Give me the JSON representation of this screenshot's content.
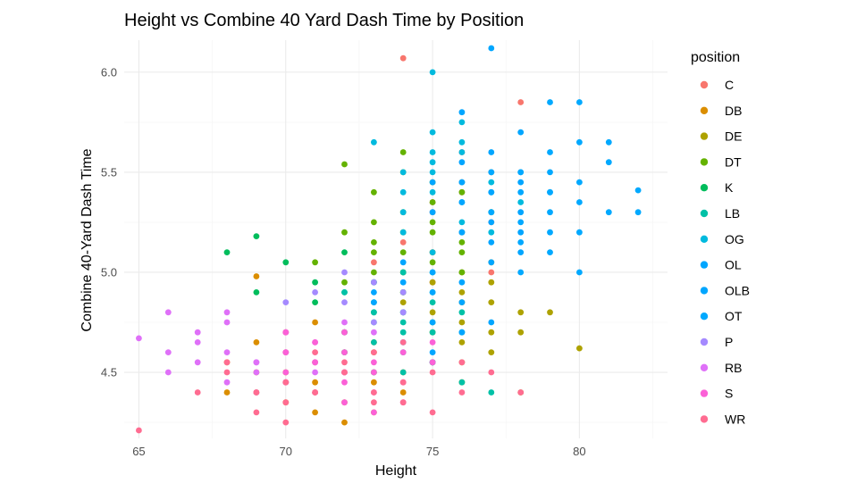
{
  "chart_data": {
    "type": "scatter",
    "title": "Height vs Combine 40 Yard Dash Time by Position",
    "xlabel": "Height",
    "ylabel": "Combine 40-Yard Dash Time",
    "xlim": [
      64.5,
      83
    ],
    "ylim": [
      4.17,
      6.16
    ],
    "x_ticks": [
      65,
      70,
      75,
      80
    ],
    "y_ticks": [
      4.5,
      5.0,
      5.5,
      6.0
    ],
    "y_tick_labels": [
      "4.5",
      "5.0",
      "5.5",
      "6.0"
    ],
    "grid": true,
    "legend": {
      "title": "position",
      "placement": "right"
    },
    "series": [
      {
        "name": "C",
        "color": "#F8766D",
        "x": [
          74,
          75,
          76,
          77,
          75,
          76,
          77,
          74,
          76,
          75,
          78,
          77,
          73,
          75,
          76
        ],
        "y": [
          6.07,
          5.3,
          5.2,
          5.5,
          5.1,
          5.4,
          5.0,
          5.15,
          5.6,
          5.35,
          5.85,
          5.25,
          5.05,
          4.95,
          5.45
        ]
      },
      {
        "name": "DB",
        "color": "#DB8E00",
        "x": [
          68,
          69,
          70,
          70,
          71,
          71,
          72,
          72,
          73,
          73,
          74,
          70,
          69,
          72,
          71,
          73,
          74,
          68,
          70,
          72,
          71,
          69,
          73,
          75,
          74,
          70,
          72,
          71,
          69,
          73
        ],
        "y": [
          4.4,
          4.5,
          4.45,
          4.6,
          4.4,
          4.55,
          4.5,
          4.35,
          4.45,
          4.6,
          4.5,
          4.7,
          4.65,
          4.7,
          4.3,
          4.3,
          4.4,
          4.55,
          4.35,
          4.25,
          4.75,
          4.98,
          4.65,
          4.55,
          4.8,
          4.5,
          4.6,
          4.45,
          4.4,
          4.5
        ]
      },
      {
        "name": "DE",
        "color": "#AEA200",
        "x": [
          74,
          75,
          76,
          77,
          75,
          76,
          77,
          78,
          74,
          76,
          75,
          77,
          78,
          76,
          75,
          74,
          77,
          76,
          79,
          80,
          78,
          76,
          75,
          77,
          76
        ],
        "y": [
          5.0,
          4.8,
          4.9,
          4.85,
          4.7,
          4.75,
          4.6,
          4.7,
          4.9,
          5.0,
          5.1,
          4.95,
          4.8,
          4.65,
          4.55,
          4.85,
          4.7,
          4.55,
          4.8,
          4.62,
          4.4,
          4.45,
          4.95,
          5.05,
          4.85
        ]
      },
      {
        "name": "DT",
        "color": "#64B200",
        "x": [
          72,
          73,
          74,
          75,
          76,
          74,
          73,
          75,
          76,
          72,
          74,
          75,
          73,
          77,
          74,
          76,
          73,
          75,
          72,
          74,
          71,
          75,
          74,
          76,
          73
        ],
        "y": [
          5.2,
          5.1,
          5.3,
          5.2,
          5.4,
          5.5,
          5.4,
          5.05,
          5.15,
          5.54,
          5.1,
          5.25,
          5.0,
          5.3,
          5.6,
          5.0,
          5.25,
          5.45,
          4.95,
          4.9,
          5.05,
          5.35,
          5.2,
          5.1,
          5.15
        ]
      },
      {
        "name": "K",
        "color": "#00BD5C",
        "x": [
          68,
          69,
          72,
          73,
          74,
          70,
          71,
          72,
          75,
          69,
          73,
          71
        ],
        "y": [
          5.1,
          5.18,
          4.9,
          4.95,
          5.0,
          5.05,
          4.85,
          5.1,
          4.75,
          4.9,
          4.8,
          4.95
        ]
      },
      {
        "name": "LB",
        "color": "#00C1A7",
        "x": [
          72,
          73,
          74,
          75,
          73,
          74,
          75,
          76,
          72,
          74,
          73,
          75,
          76,
          74,
          73,
          72,
          74,
          75,
          73,
          76,
          77,
          74,
          73,
          75,
          74
        ],
        "y": [
          4.7,
          4.8,
          4.75,
          4.85,
          4.65,
          4.9,
          4.7,
          4.8,
          4.9,
          4.6,
          4.95,
          4.55,
          4.7,
          4.5,
          4.5,
          4.6,
          5.0,
          5.0,
          4.85,
          4.45,
          4.4,
          4.7,
          4.75,
          4.9,
          4.8
        ]
      },
      {
        "name": "OG",
        "color": "#00BADE",
        "x": [
          74,
          75,
          76,
          77,
          75,
          76,
          77,
          74,
          75,
          76,
          75,
          76,
          77,
          78,
          74,
          75,
          76,
          73,
          75,
          77,
          76,
          74,
          75,
          76,
          77
        ],
        "y": [
          5.3,
          5.4,
          5.2,
          5.3,
          5.5,
          5.45,
          5.5,
          5.2,
          5.6,
          5.25,
          5.7,
          5.65,
          5.4,
          5.35,
          5.5,
          6.0,
          5.75,
          5.65,
          5.1,
          5.2,
          5.6,
          5.4,
          5.55,
          5.35,
          5.45
        ]
      },
      {
        "name": "OL",
        "color": "#00A6FF",
        "x": [
          75,
          76,
          77,
          78,
          76,
          77,
          78,
          79,
          77,
          78,
          77,
          76,
          78,
          77,
          76,
          78,
          77,
          76,
          75,
          78
        ],
        "y": [
          5.3,
          5.2,
          5.4,
          5.3,
          5.45,
          5.25,
          5.5,
          5.4,
          5.6,
          5.45,
          6.12,
          5.8,
          5.7,
          5.15,
          5.35,
          5.1,
          5.05,
          5.55,
          5.45,
          5.2
        ]
      },
      {
        "name": "OLB",
        "color": "#00A6FF",
        "x": [
          74,
          75,
          76,
          75,
          74,
          76,
          73,
          75,
          74,
          76,
          75,
          74,
          77,
          73,
          75
        ],
        "y": [
          4.8,
          4.9,
          4.85,
          4.75,
          4.95,
          4.7,
          4.85,
          5.0,
          4.65,
          4.95,
          4.6,
          5.05,
          4.75,
          4.9,
          4.55
        ]
      },
      {
        "name": "OT",
        "color": "#00A9FF",
        "x": [
          77,
          78,
          79,
          80,
          78,
          79,
          80,
          81,
          79,
          78,
          80,
          79,
          80,
          81,
          82,
          79,
          80,
          78,
          81,
          82,
          77,
          78,
          79,
          80,
          79
        ],
        "y": [
          5.3,
          5.4,
          5.3,
          5.2,
          5.5,
          5.6,
          5.45,
          5.3,
          5.1,
          5.0,
          5.65,
          5.85,
          5.85,
          5.55,
          5.41,
          5.2,
          5.0,
          5.15,
          5.65,
          5.3,
          5.5,
          5.25,
          5.4,
          5.35,
          5.5
        ]
      },
      {
        "name": "P",
        "color": "#A58AFF",
        "x": [
          71,
          72,
          73,
          74,
          72,
          73,
          70,
          74
        ],
        "y": [
          4.9,
          4.85,
          4.95,
          4.8,
          5.0,
          4.75,
          4.85,
          4.9
        ]
      },
      {
        "name": "RB",
        "color": "#DF70F8",
        "x": [
          65,
          66,
          67,
          68,
          68,
          69,
          69,
          70,
          70,
          71,
          71,
          72,
          67,
          66,
          68,
          69,
          70,
          71,
          72,
          73,
          68,
          67,
          66,
          69,
          70
        ],
        "y": [
          4.67,
          4.5,
          4.55,
          4.6,
          4.45,
          4.5,
          4.55,
          4.45,
          4.6,
          4.5,
          4.55,
          4.5,
          4.7,
          4.6,
          4.75,
          4.4,
          4.7,
          4.65,
          4.75,
          4.7,
          4.8,
          4.65,
          4.8,
          4.55,
          4.45
        ]
      },
      {
        "name": "S",
        "color": "#FB61D7",
        "x": [
          70,
          71,
          72,
          73,
          74,
          71,
          72,
          73,
          70,
          74,
          75,
          72,
          73,
          71,
          72,
          74,
          70,
          73,
          75,
          72
        ],
        "y": [
          4.5,
          4.55,
          4.45,
          4.5,
          4.6,
          4.65,
          4.35,
          4.4,
          4.6,
          4.45,
          4.55,
          4.7,
          4.3,
          4.4,
          4.6,
          4.35,
          4.7,
          4.55,
          4.65,
          4.5
        ]
      },
      {
        "name": "WR",
        "color": "#FF6C91",
        "x": [
          65,
          67,
          68,
          69,
          70,
          71,
          72,
          73,
          74,
          75,
          76,
          72,
          71,
          70,
          73,
          74,
          69,
          68,
          76,
          77,
          78,
          75,
          74,
          73,
          70
        ],
        "y": [
          4.21,
          4.4,
          4.5,
          4.3,
          4.45,
          4.4,
          4.5,
          4.35,
          4.45,
          4.5,
          4.4,
          4.55,
          4.6,
          4.25,
          4.6,
          4.35,
          4.4,
          4.55,
          4.55,
          4.5,
          4.4,
          4.3,
          4.65,
          4.4,
          4.35
        ]
      }
    ]
  }
}
